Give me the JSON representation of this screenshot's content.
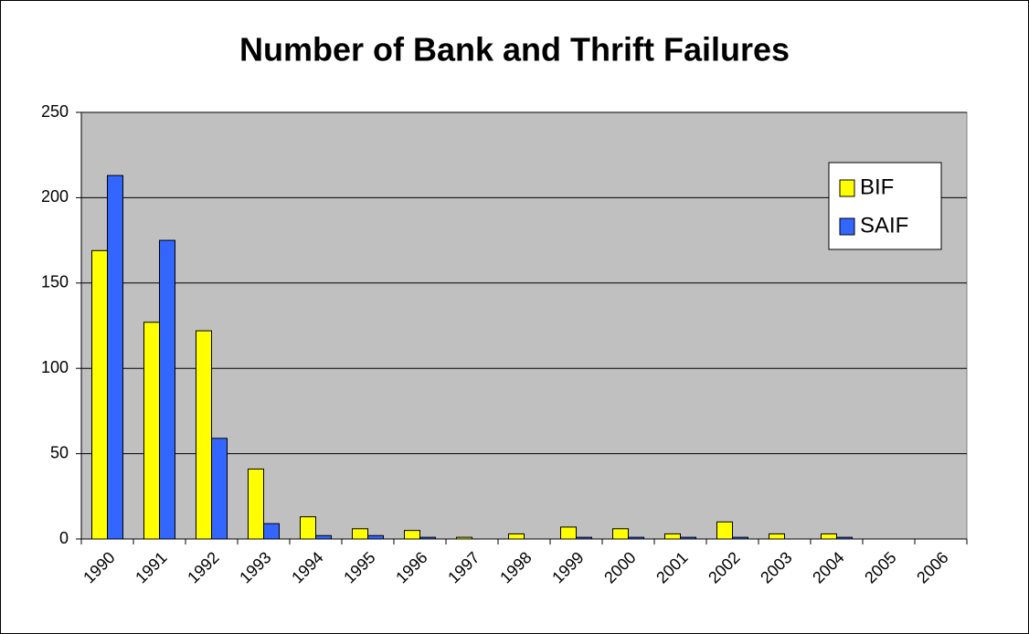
{
  "chart_data": {
    "type": "bar",
    "title": "Number of Bank and Thrift Failures",
    "categories": [
      "1990",
      "1991",
      "1992",
      "1993",
      "1994",
      "1995",
      "1996",
      "1997",
      "1998",
      "1999",
      "2000",
      "2001",
      "2002",
      "2003",
      "2004",
      "2005",
      "2006"
    ],
    "series": [
      {
        "name": "BIF",
        "color": "#ffff00",
        "values": [
          169,
          127,
          122,
          41,
          13,
          6,
          5,
          1,
          3,
          7,
          6,
          3,
          10,
          3,
          3,
          0,
          0
        ]
      },
      {
        "name": "SAIF",
        "color": "#3366ff",
        "values": [
          213,
          175,
          59,
          9,
          2,
          2,
          1,
          0,
          0,
          1,
          1,
          1,
          1,
          0,
          1,
          0,
          0
        ]
      }
    ],
    "ylim": [
      0,
      250
    ],
    "yticks": [
      0,
      50,
      100,
      150,
      200,
      250
    ],
    "grid": true,
    "legend": "right"
  }
}
